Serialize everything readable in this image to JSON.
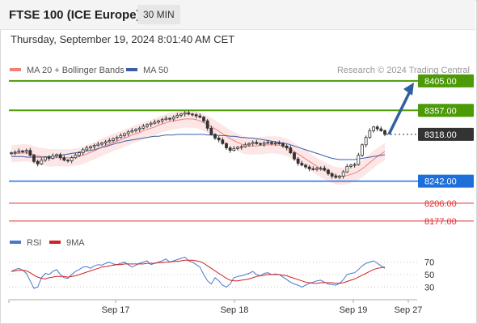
{
  "header": {
    "title": "FTSE 100 (ICE Europe)",
    "interval": "30 MIN",
    "datetime": "Thursday, September 19, 2024 8:01:40 AM CET"
  },
  "colors": {
    "price_line": "#4c9a06",
    "current": "#333333",
    "support_blue": "#1e6fd9",
    "support_red": "#e03030",
    "ma20": "#f08080",
    "ma50": "#3a5ea8",
    "bands": "#fde2e2",
    "arrow": "#2f5fa0",
    "rsi": "#4a78c8",
    "rsi_ma": "#d42020"
  },
  "chart_data": [
    {
      "type": "candlestick",
      "legend": [
        {
          "name": "MA 20 + Bollinger Bands",
          "color": "#f08080"
        },
        {
          "name": "MA 50",
          "color": "#3a5ea8"
        }
      ],
      "legend_placement": "top-left",
      "credit": "Research © 2024 Trading Central",
      "ylim": [
        8165,
        8418
      ],
      "x_tick_labels": [
        "Sep 17",
        "Sep 18",
        "Sep 19",
        "Sep 27"
      ],
      "levels": [
        {
          "value": 8405,
          "label": "8405.00",
          "kind": "resistance"
        },
        {
          "value": 8357,
          "label": "8357.00",
          "kind": "resistance"
        },
        {
          "value": 8318,
          "label": "8318.00",
          "kind": "current"
        },
        {
          "value": 8242,
          "label": "8242.00",
          "kind": "support-blue"
        },
        {
          "value": 8206,
          "label": "8206.00",
          "kind": "support-red"
        },
        {
          "value": 8177,
          "label": "8177.00",
          "kind": "support-red"
        }
      ],
      "close": [
        8288,
        8289,
        8291,
        8290,
        8292,
        8284,
        8274,
        8270,
        8276,
        8281,
        8279,
        8283,
        8285,
        8280,
        8276,
        8275,
        8280,
        8284,
        8288,
        8293,
        8296,
        8298,
        8300,
        8302,
        8304,
        8306,
        8308,
        8311,
        8313,
        8316,
        8319,
        8322,
        8324,
        8326,
        8328,
        8331,
        8334,
        8336,
        8338,
        8340,
        8342,
        8344,
        8343,
        8346,
        8349,
        8351,
        8353,
        8351,
        8350,
        8348,
        8346,
        8340,
        8328,
        8318,
        8312,
        8309,
        8303,
        8296,
        8292,
        8295,
        8297,
        8298,
        8301,
        8303,
        8305,
        8303,
        8302,
        8304,
        8305,
        8303,
        8304,
        8303,
        8299,
        8296,
        8288,
        8278,
        8271,
        8268,
        8265,
        8262,
        8261,
        8263,
        8263,
        8260,
        8254,
        8250,
        8248,
        8250,
        8257,
        8266,
        8268,
        8269,
        8284,
        8301,
        8313,
        8324,
        8330,
        8327,
        8324,
        8318
      ],
      "ma20": [
        8286,
        8287,
        8287,
        8288,
        8288,
        8287,
        8285,
        8283,
        8282,
        8281,
        8280,
        8280,
        8280,
        8280,
        8280,
        8280,
        8280,
        8281,
        8282,
        8284,
        8286,
        8289,
        8291,
        8294,
        8297,
        8300,
        8302,
        8305,
        8307,
        8309,
        8312,
        8314,
        8317,
        8319,
        8321,
        8324,
        8326,
        8328,
        8330,
        8333,
        8335,
        8337,
        8339,
        8340,
        8341,
        8342,
        8343,
        8343,
        8343,
        8342,
        8340,
        8337,
        8334,
        8331,
        8327,
        8323,
        8319,
        8315,
        8311,
        8308,
        8305,
        8302,
        8300,
        8299,
        8299,
        8299,
        8300,
        8300,
        8301,
        8301,
        8301,
        8300,
        8299,
        8297,
        8294,
        8290,
        8286,
        8282,
        8278,
        8274,
        8270,
        8266,
        8262,
        8259,
        8256,
        8253,
        8251,
        8250,
        8250,
        8251,
        8253,
        8255,
        8258,
        8262,
        8267,
        8272,
        8277,
        8282,
        8286,
        8290
      ],
      "ma50": [
        8282,
        8282,
        8282,
        8282,
        8281,
        8281,
        8281,
        8281,
        8281,
        8281,
        8282,
        8282,
        8283,
        8284,
        8285,
        8286,
        8287,
        8288,
        8289,
        8290,
        8291,
        8292,
        8293,
        8295,
        8297,
        8298,
        8300,
        8302,
        8304,
        8305,
        8307,
        8308,
        8309,
        8310,
        8311,
        8312,
        8313,
        8314,
        8315,
        8315,
        8316,
        8317,
        8317,
        8317,
        8318,
        8318,
        8318,
        8318,
        8318,
        8318,
        8318,
        8318,
        8317,
        8317,
        8317,
        8316,
        8316,
        8316,
        8315,
        8315,
        8314,
        8313,
        8313,
        8312,
        8312,
        8311,
        8310,
        8309,
        8308,
        8307,
        8306,
        8305,
        8304,
        8303,
        8301,
        8299,
        8297,
        8295,
        8293,
        8291,
        8289,
        8287,
        8285,
        8283,
        8281,
        8279,
        8278,
        8277,
        8277,
        8277,
        8277,
        8277,
        8278,
        8279,
        8280,
        8281,
        8282,
        8283,
        8284,
        8285
      ],
      "forecast_arrow": {
        "from": 8318,
        "to": 8405
      }
    },
    {
      "type": "line",
      "legend": [
        {
          "name": "RSI",
          "color": "#4a78c8"
        },
        {
          "name": "9MA",
          "color": "#d42020"
        }
      ],
      "ylim": [
        15,
        85
      ],
      "y_tick_labels": [
        "70",
        "50",
        "30"
      ],
      "y_ticks": [
        70,
        50,
        30
      ],
      "rsi": [
        55,
        58,
        60,
        57,
        52,
        40,
        28,
        30,
        45,
        52,
        50,
        55,
        58,
        50,
        45,
        44,
        50,
        55,
        58,
        62,
        63,
        60,
        64,
        66,
        65,
        68,
        70,
        67,
        66,
        68,
        70,
        66,
        62,
        65,
        68,
        70,
        72,
        66,
        68,
        70,
        72,
        75,
        70,
        72,
        74,
        76,
        78,
        72,
        70,
        66,
        62,
        50,
        40,
        35,
        45,
        40,
        33,
        30,
        35,
        45,
        47,
        48,
        50,
        52,
        55,
        50,
        48,
        52,
        53,
        50,
        51,
        50,
        46,
        42,
        38,
        35,
        33,
        30,
        33,
        36,
        38,
        40,
        41,
        38,
        35,
        34,
        33,
        36,
        42,
        50,
        52,
        53,
        58,
        64,
        68,
        70,
        72,
        68,
        64,
        60
      ],
      "rsi_ma": [
        55,
        56,
        57,
        57,
        56,
        53,
        49,
        46,
        44,
        43,
        45,
        46,
        47,
        47,
        47,
        46,
        47,
        48,
        50,
        52,
        54,
        56,
        58,
        60,
        62,
        63,
        64,
        65,
        66,
        66,
        67,
        67,
        67,
        67,
        67,
        67,
        68,
        68,
        68,
        69,
        69,
        70,
        70,
        71,
        71,
        72,
        73,
        73,
        73,
        72,
        71,
        68,
        64,
        60,
        56,
        52,
        48,
        44,
        41,
        40,
        40,
        41,
        42,
        43,
        45,
        47,
        48,
        49,
        50,
        50,
        50,
        50,
        49,
        48,
        46,
        44,
        42,
        40,
        38,
        37,
        36,
        36,
        37,
        37,
        37,
        37,
        36,
        36,
        37,
        39,
        41,
        43,
        46,
        49,
        52,
        55,
        58,
        60,
        61,
        62
      ]
    }
  ]
}
